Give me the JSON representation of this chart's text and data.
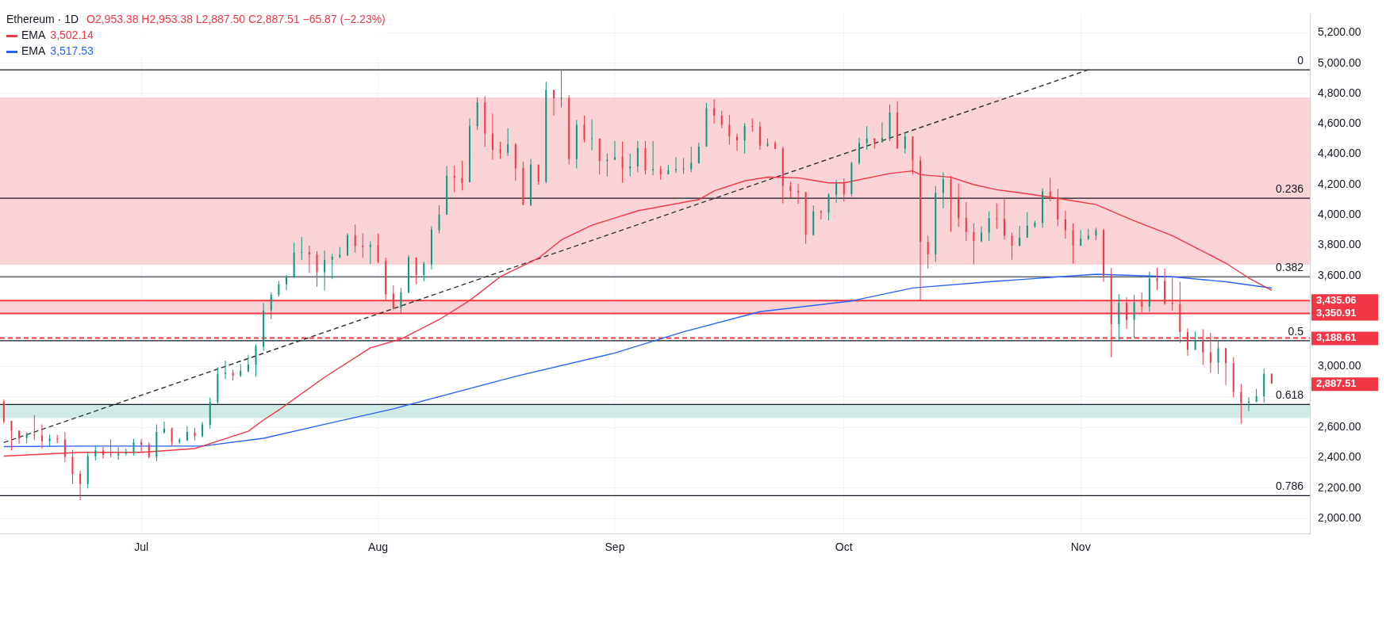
{
  "chart_data": {
    "type": "candlestick",
    "title": "Ethereum · 1D",
    "subtitle": "O2,953.38 H2,953.38 L2,887.50 C2,887.51 −65.87 (−2.23%)",
    "x": [
      "--06-13",
      "--06-14",
      "--06-15",
      "--06-16",
      "--06-17",
      "--06-18",
      "--06-19",
      "--06-20",
      "--06-21",
      "--06-22",
      "--06-23",
      "--06-24",
      "--06-25",
      "--06-26",
      "--06-27",
      "--06-28",
      "--06-29",
      "--06-30",
      "--07-01",
      "--07-02",
      "--07-03",
      "--07-04",
      "--07-05",
      "--07-06",
      "--07-07",
      "--07-08",
      "--07-09",
      "--07-10",
      "--07-11",
      "--07-12",
      "--07-13",
      "--07-14",
      "--07-15",
      "--07-16",
      "--07-17",
      "--07-18",
      "--07-19",
      "--07-20",
      "--07-21",
      "--07-22",
      "--07-23",
      "--07-24",
      "--07-25",
      "--07-26",
      "--07-27",
      "--07-28",
      "--07-29",
      "--07-30",
      "--07-31",
      "--08-01",
      "--08-02",
      "--08-03",
      "--08-04",
      "--08-05",
      "--08-06",
      "--08-07",
      "--08-08",
      "--08-09",
      "--08-10",
      "--08-11",
      "--08-12",
      "--08-13",
      "--08-14",
      "--08-15",
      "--08-16",
      "--08-17",
      "--08-18",
      "--08-19",
      "--08-20",
      "--08-21",
      "--08-22",
      "--08-23",
      "--08-24",
      "--08-25",
      "--08-26",
      "--08-27",
      "--08-28",
      "--08-29",
      "--08-30",
      "--08-31",
      "--09-01",
      "--09-02",
      "--09-03",
      "--09-04",
      "--09-05",
      "--09-06",
      "--09-07",
      "--09-08",
      "--09-09",
      "--09-10",
      "--09-11",
      "--09-12",
      "--09-13",
      "--09-14",
      "--09-15",
      "--09-16",
      "--09-17",
      "--09-18",
      "--09-19",
      "--09-20",
      "--09-21",
      "--09-22",
      "--09-23",
      "--09-24",
      "--09-25",
      "--09-26",
      "--09-27",
      "--09-28",
      "--09-29",
      "--09-30",
      "--10-01",
      "--10-02",
      "--10-03",
      "--10-04",
      "--10-05",
      "--10-06",
      "--10-07",
      "--10-08",
      "--10-09",
      "--10-10",
      "--10-11",
      "--10-12",
      "--10-13",
      "--10-14",
      "--10-15",
      "--10-16",
      "--10-17",
      "--10-18",
      "--10-19",
      "--10-20",
      "--10-21",
      "--10-22",
      "--10-23",
      "--10-24",
      "--10-25",
      "--10-26",
      "--10-27",
      "--10-28",
      "--10-29",
      "--10-30",
      "--10-31",
      "--11-01",
      "--11-02",
      "--11-03",
      "--11-04",
      "--11-05",
      "--11-06",
      "--11-07",
      "--11-08",
      "--11-09",
      "--11-10",
      "--11-11",
      "--11-12",
      "--11-13",
      "--11-14",
      "--11-15",
      "--11-16",
      "--11-17",
      "--11-18",
      "--11-19",
      "--11-20",
      "--11-21",
      "--11-22",
      "--11-23",
      "--11-24",
      "--11-25",
      "--11-26"
    ],
    "ohlc": [
      [
        2771,
        2783,
        2624,
        2640
      ],
      [
        2643,
        2643,
        2448,
        2578
      ],
      [
        2578,
        2578,
        2492,
        2528
      ],
      [
        2530,
        2566,
        2496,
        2553
      ],
      [
        2553,
        2681,
        2517,
        2547
      ],
      [
        2547,
        2619,
        2460,
        2509
      ],
      [
        2509,
        2550,
        2471,
        2525
      ],
      [
        2525,
        2550,
        2496,
        2520
      ],
      [
        2520,
        2569,
        2372,
        2405
      ],
      [
        2405,
        2451,
        2225,
        2292
      ],
      [
        2295,
        2315,
        2120,
        2227
      ],
      [
        2227,
        2435,
        2197,
        2410
      ],
      [
        2410,
        2481,
        2382,
        2448
      ],
      [
        2448,
        2471,
        2394,
        2418
      ],
      [
        2422,
        2520,
        2402,
        2418
      ],
      [
        2415,
        2468,
        2386,
        2427
      ],
      [
        2427,
        2460,
        2415,
        2435
      ],
      [
        2432,
        2525,
        2415,
        2501
      ],
      [
        2501,
        2525,
        2435,
        2484
      ],
      [
        2487,
        2501,
        2394,
        2405
      ],
      [
        2405,
        2619,
        2378,
        2570
      ],
      [
        2566,
        2637,
        2558,
        2591
      ],
      [
        2591,
        2599,
        2476,
        2504
      ],
      [
        2504,
        2530,
        2492,
        2517
      ],
      [
        2514,
        2607,
        2509,
        2570
      ],
      [
        2566,
        2596,
        2514,
        2542
      ],
      [
        2542,
        2635,
        2533,
        2619
      ],
      [
        2616,
        2796,
        2591,
        2766
      ],
      [
        2766,
        2996,
        2755,
        2952
      ],
      [
        2952,
        3039,
        2919,
        2960
      ],
      [
        2960,
        2980,
        2908,
        2940
      ],
      [
        2940,
        3017,
        2931,
        2972
      ],
      [
        2968,
        3078,
        2963,
        3014
      ],
      [
        3013,
        3146,
        2935,
        3136
      ],
      [
        3132,
        3420,
        3104,
        3370
      ],
      [
        3371,
        3490,
        3313,
        3474
      ],
      [
        3474,
        3565,
        3460,
        3543
      ],
      [
        3543,
        3604,
        3505,
        3592
      ],
      [
        3592,
        3817,
        3584,
        3751
      ],
      [
        3751,
        3855,
        3702,
        3756
      ],
      [
        3756,
        3797,
        3617,
        3740
      ],
      [
        3740,
        3761,
        3527,
        3622
      ],
      [
        3622,
        3764,
        3502,
        3704
      ],
      [
        3704,
        3743,
        3576,
        3724
      ],
      [
        3720,
        3789,
        3715,
        3737
      ],
      [
        3732,
        3879,
        3732,
        3866
      ],
      [
        3866,
        3937,
        3751,
        3794
      ],
      [
        3797,
        3879,
        3715,
        3789
      ],
      [
        3789,
        3827,
        3677,
        3802
      ],
      [
        3802,
        3876,
        3682,
        3691
      ],
      [
        3695,
        3718,
        3436,
        3477
      ],
      [
        3482,
        3535,
        3371,
        3387
      ],
      [
        3387,
        3518,
        3351,
        3490
      ],
      [
        3489,
        3735,
        3482,
        3719
      ],
      [
        3719,
        3719,
        3543,
        3604
      ],
      [
        3604,
        3692,
        3563,
        3679
      ],
      [
        3674,
        3925,
        3641,
        3904
      ],
      [
        3899,
        4063,
        3879,
        4002
      ],
      [
        4002,
        4322,
        4002,
        4257
      ],
      [
        4257,
        4326,
        4150,
        4244
      ],
      [
        4244,
        4358,
        4161,
        4212
      ],
      [
        4216,
        4634,
        4216,
        4585
      ],
      [
        4585,
        4774,
        4560,
        4741
      ],
      [
        4741,
        4782,
        4449,
        4536
      ],
      [
        4536,
        4667,
        4363,
        4429
      ],
      [
        4432,
        4483,
        4368,
        4409
      ],
      [
        4409,
        4572,
        4388,
        4465
      ],
      [
        4465,
        4473,
        4224,
        4306
      ],
      [
        4309,
        4352,
        4065,
        4065
      ],
      [
        4065,
        4368,
        4057,
        4331
      ],
      [
        4331,
        4331,
        4199,
        4219
      ],
      [
        4219,
        4877,
        4208,
        4823
      ],
      [
        4823,
        4823,
        4654,
        4769
      ],
      [
        4769,
        4956,
        4708,
        4772
      ],
      [
        4770,
        4790,
        4331,
        4368
      ],
      [
        4368,
        4626,
        4306,
        4593
      ],
      [
        4593,
        4654,
        4478,
        4495
      ],
      [
        4500,
        4629,
        4426,
        4505
      ],
      [
        4503,
        4503,
        4265,
        4355
      ],
      [
        4355,
        4404,
        4253,
        4363
      ],
      [
        4363,
        4487,
        4363,
        4380
      ],
      [
        4383,
        4483,
        4211,
        4306
      ],
      [
        4306,
        4404,
        4253,
        4319
      ],
      [
        4319,
        4487,
        4281,
        4441
      ],
      [
        4441,
        4487,
        4265,
        4293
      ],
      [
        4293,
        4487,
        4260,
        4301
      ],
      [
        4301,
        4322,
        4232,
        4268
      ],
      [
        4268,
        4331,
        4268,
        4294
      ],
      [
        4294,
        4380,
        4276,
        4301
      ],
      [
        4301,
        4375,
        4270,
        4306
      ],
      [
        4301,
        4450,
        4281,
        4342
      ],
      [
        4339,
        4475,
        4339,
        4450
      ],
      [
        4450,
        4738,
        4450,
        4703
      ],
      [
        4703,
        4762,
        4601,
        4654
      ],
      [
        4654,
        4687,
        4572,
        4593
      ],
      [
        4593,
        4659,
        4462,
        4516
      ],
      [
        4516,
        4536,
        4421,
        4491
      ],
      [
        4491,
        4605,
        4404,
        4585
      ],
      [
        4585,
        4637,
        4547,
        4582
      ],
      [
        4582,
        4614,
        4429,
        4457
      ],
      [
        4457,
        4503,
        4450,
        4470
      ],
      [
        4473,
        4486,
        4434,
        4434
      ],
      [
        4437,
        4449,
        4076,
        4191
      ],
      [
        4191,
        4219,
        4112,
        4158
      ],
      [
        4158,
        4203,
        4073,
        4148
      ],
      [
        4150,
        4150,
        3810,
        3868
      ],
      [
        3868,
        4063,
        3863,
        4024
      ],
      [
        4024,
        4032,
        3970,
        4016
      ],
      [
        4014,
        4142,
        3965,
        4134
      ],
      [
        4134,
        4229,
        4079,
        4208
      ],
      [
        4208,
        4240,
        4089,
        4137
      ],
      [
        4137,
        4350,
        4120,
        4342
      ],
      [
        4342,
        4508,
        4331,
        4473
      ],
      [
        4473,
        4585,
        4429,
        4503
      ],
      [
        4503,
        4506,
        4437,
        4478
      ],
      [
        4478,
        4610,
        4478,
        4506
      ],
      [
        4506,
        4728,
        4486,
        4675
      ],
      [
        4675,
        4749,
        4437,
        4437
      ],
      [
        4437,
        4544,
        4404,
        4516
      ],
      [
        4516,
        4519,
        4265,
        4358
      ],
      [
        4358,
        4388,
        3436,
        3822
      ],
      [
        3822,
        3863,
        3646,
        3740
      ],
      [
        3740,
        4191,
        3690,
        4145
      ],
      [
        4145,
        4281,
        4043,
        4235
      ],
      [
        4235,
        4257,
        3888,
        4117
      ],
      [
        4117,
        4207,
        3920,
        3978
      ],
      [
        3981,
        4084,
        3827,
        3887
      ],
      [
        3887,
        3945,
        3674,
        3827
      ],
      [
        3827,
        3924,
        3819,
        3884
      ],
      [
        3884,
        4024,
        3827,
        3978
      ],
      [
        3978,
        4076,
        3907,
        3973
      ],
      [
        3973,
        4109,
        3838,
        3863
      ],
      [
        3863,
        3882,
        3705,
        3797
      ],
      [
        3797,
        3929,
        3792,
        3850
      ],
      [
        3850,
        4019,
        3850,
        3929
      ],
      [
        3925,
        3961,
        3915,
        3948
      ],
      [
        3948,
        4175,
        3915,
        4155
      ],
      [
        4155,
        4244,
        4089,
        4112
      ],
      [
        4112,
        4171,
        3925,
        3970
      ],
      [
        3970,
        4027,
        3843,
        3899
      ],
      [
        3899,
        3945,
        3679,
        3797
      ],
      [
        3797,
        3899,
        3794,
        3843
      ],
      [
        3843,
        3909,
        3833,
        3863
      ],
      [
        3863,
        3915,
        3833,
        3899
      ],
      [
        3899,
        3909,
        3559,
        3597
      ],
      [
        3600,
        3649,
        3062,
        3280
      ],
      [
        3280,
        3477,
        3170,
        3420
      ],
      [
        3420,
        3456,
        3247,
        3308
      ],
      [
        3308,
        3472,
        3190,
        3425
      ],
      [
        3428,
        3489,
        3357,
        3395
      ],
      [
        3395,
        3625,
        3362,
        3581
      ],
      [
        3581,
        3653,
        3505,
        3564
      ],
      [
        3564,
        3646,
        3407,
        3415
      ],
      [
        3420,
        3587,
        3370,
        3413
      ],
      [
        3412,
        3559,
        3157,
        3228
      ],
      [
        3228,
        3252,
        3072,
        3111
      ],
      [
        3111,
        3231,
        3111,
        3170
      ],
      [
        3170,
        3247,
        3010,
        3095
      ],
      [
        3095,
        3223,
        2960,
        3026
      ],
      [
        3026,
        3170,
        2952,
        3121
      ],
      [
        3121,
        3124,
        2878,
        3023
      ],
      [
        3023,
        3062,
        2796,
        2832
      ],
      [
        2832,
        2886,
        2624,
        2760
      ],
      [
        2763,
        2799,
        2706,
        2770
      ],
      [
        2767,
        2854,
        2767,
        2804
      ],
      [
        2804,
        2985,
        2763,
        2952
      ],
      [
        2953.38,
        2953.38,
        2887.5,
        2887.51
      ]
    ],
    "series": [
      {
        "type": "line",
        "name": "EMA",
        "color": "#f23645",
        "x": [
          "--06-13",
          "--06-23",
          "--07-01",
          "--07-08",
          "--07-11",
          "--07-15",
          "--07-17",
          "--07-19",
          "--07-25",
          "--07-31",
          "--08-04",
          "--08-09",
          "--08-13",
          "--08-17",
          "--08-22",
          "--08-25",
          "--08-29",
          "--09-04",
          "--09-12",
          "--09-14",
          "--09-18",
          "--09-21",
          "--09-25",
          "--09-29",
          "--10-01",
          "--10-07",
          "--10-10",
          "--10-11",
          "--10-15",
          "--10-18",
          "--10-21",
          "--10-25",
          "--10-29",
          "--11-03",
          "--11-08",
          "--11-13",
          "--11-20",
          "--11-23",
          "--11-26"
        ],
        "values": [
          2410,
          2435,
          2435,
          2460,
          2509,
          2574,
          2648,
          2714,
          2930,
          3124,
          3182,
          3310,
          3436,
          3592,
          3715,
          3835,
          3932,
          4027,
          4101,
          4158,
          4224,
          4249,
          4244,
          4211,
          4211,
          4273,
          4290,
          4265,
          4248,
          4199,
          4166,
          4139,
          4109,
          4068,
          3961,
          3863,
          3682,
          3584,
          3502.14
        ]
      },
      {
        "type": "line",
        "name": "EMA",
        "color": "#2962ff",
        "x": [
          "--06-13",
          "--06-23",
          "--07-09",
          "--07-17",
          "--07-25",
          "--08-03",
          "--08-19",
          "--09-01",
          "--09-10",
          "--09-20",
          "--10-02",
          "--10-10",
          "--10-21",
          "--11-03",
          "--11-13",
          "--11-20",
          "--11-26"
        ],
        "values": [
          2473,
          2476,
          2476,
          2528,
          2620,
          2722,
          2936,
          3090,
          3230,
          3362,
          3433,
          3518,
          3563,
          3609,
          3592,
          3559,
          3517.53
        ]
      },
      {
        "type": "line",
        "color": "#333333",
        "line_style": "dashed",
        "x": [
          "--06-13",
          "--11-02"
        ],
        "values": [
          2500,
          4956
        ]
      }
    ],
    "xlim": [
      "--06-12T12:00",
      "--12-01"
    ],
    "xticks": [
      {
        "value": "--07-01",
        "label": "Jul"
      },
      {
        "value": "--08-01",
        "label": "Aug"
      },
      {
        "value": "--09-01",
        "label": "Sep"
      },
      {
        "value": "--10-01",
        "label": "Oct"
      },
      {
        "value": "--11-01",
        "label": "Nov"
      }
    ],
    "ylim": [
      1900,
      5320
    ],
    "yticks": [
      {
        "value": 2000,
        "label": "2,000.00"
      },
      {
        "value": 2200,
        "label": "2,200.00"
      },
      {
        "value": 2400,
        "label": "2,400.00"
      },
      {
        "value": 2600,
        "label": "2,600.00"
      },
      {
        "value": 2800,
        "label": null
      },
      {
        "value": 3000,
        "label": "3,000.00"
      },
      {
        "value": 3200,
        "label": null
      },
      {
        "value": 3600,
        "label": "3,600.00"
      },
      {
        "value": 3800,
        "label": "3,800.00"
      },
      {
        "value": 4000,
        "label": "4,000.00"
      },
      {
        "value": 4200,
        "label": "4,200.00"
      },
      {
        "value": 4400,
        "label": "4,400.00"
      },
      {
        "value": 4600,
        "label": "4,600.00"
      },
      {
        "value": 4800,
        "label": "4,800.00"
      },
      {
        "value": 5000,
        "label": "5,000.00"
      },
      {
        "value": 5200,
        "label": "5,200.00"
      }
    ],
    "bands": [
      {
        "axis": "y",
        "from": 3671,
        "to": 4774,
        "color": "#f8c8cc"
      },
      {
        "axis": "y",
        "from": 3350.91,
        "to": 3435.06,
        "color": "#f8c8cc"
      },
      {
        "axis": "y",
        "from": 2661,
        "to": 2750,
        "color": "#c4e6df"
      }
    ],
    "ref_lines": [
      {
        "axis": "y",
        "value": 4956
      },
      {
        "axis": "y",
        "value": 4110
      },
      {
        "axis": "y",
        "value": 3592
      },
      {
        "axis": "y",
        "value": 3171
      },
      {
        "axis": "y",
        "value": 2750
      },
      {
        "axis": "y",
        "value": 2150
      },
      {
        "axis": "y",
        "value": 3435.06,
        "label": "3,435.06",
        "color": "#f23645"
      },
      {
        "axis": "y",
        "value": 3350.91,
        "label": "3,350.91",
        "color": "#f23645"
      },
      {
        "axis": "y",
        "value": 3188.61,
        "label": "3,188.61",
        "color": "#f23645",
        "line_style": "dashed"
      }
    ],
    "annotations": [
      {
        "text": "0",
        "y": 4956
      },
      {
        "text": "0.236",
        "y": 4110
      },
      {
        "text": "0.382",
        "y": 3592
      },
      {
        "text": "0.5",
        "y": 3171
      },
      {
        "text": "0.618",
        "y": 2750
      },
      {
        "text": "0.786",
        "y": 2150
      },
      "2,887.51",
      "3,502.14",
      "3,517.53"
    ],
    "grid": true,
    "legend": "top left",
    "marker": "none"
  }
}
